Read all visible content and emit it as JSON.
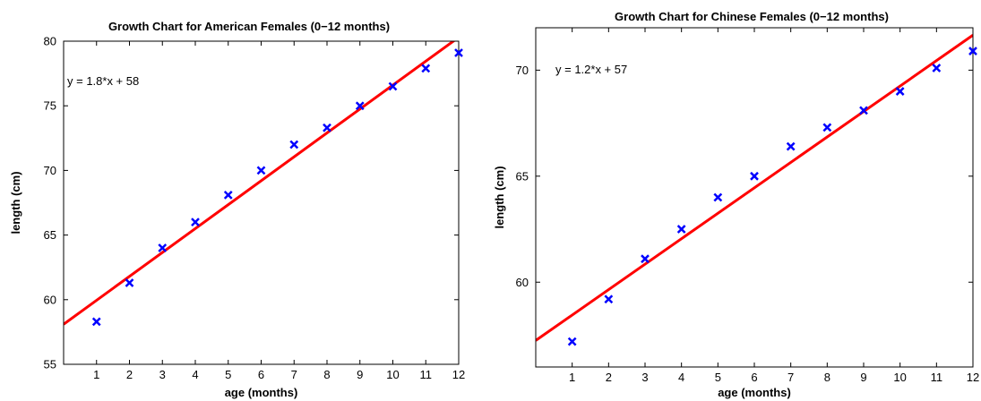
{
  "chart_data": [
    {
      "type": "scatter",
      "title": "Growth Chart for American Females  (0−12 months)",
      "xlabel": "age (months)",
      "ylabel": "length (cm)",
      "xlim": [
        0,
        12
      ],
      "ylim": [
        55,
        80
      ],
      "xticks": [
        1,
        2,
        3,
        4,
        5,
        6,
        7,
        8,
        9,
        10,
        11,
        12
      ],
      "yticks": [
        55,
        60,
        65,
        70,
        75,
        80
      ],
      "grid": false,
      "annotation": "y = 1.8*x + 58",
      "marker_color": "#0000ff",
      "fit_line_color": "#ff0000",
      "fit_line": {
        "slope": 1.85,
        "intercept": 58.1
      },
      "series": [
        {
          "x": [
            1,
            2,
            3,
            4,
            5,
            6,
            7,
            8,
            9,
            10,
            11,
            12
          ],
          "y": [
            58.3,
            61.3,
            64.0,
            66.0,
            68.1,
            70.0,
            72.0,
            73.3,
            75.0,
            76.5,
            77.9,
            79.1
          ]
        }
      ]
    },
    {
      "type": "scatter",
      "title": "Growth Chart for Chinese Females (0−12 months)",
      "xlabel": "age (months)",
      "ylabel": "length (cm)",
      "xlim": [
        0,
        12
      ],
      "ylim": [
        56,
        72
      ],
      "xticks": [
        1,
        2,
        3,
        4,
        5,
        6,
        7,
        8,
        9,
        10,
        11,
        12
      ],
      "yticks": [
        60,
        65,
        70
      ],
      "grid": false,
      "annotation": "y = 1.2*x + 57",
      "marker_color": "#0000ff",
      "fit_line_color": "#ff0000",
      "fit_line": {
        "slope": 1.2,
        "intercept": 57.25
      },
      "series": [
        {
          "x": [
            1,
            2,
            3,
            4,
            5,
            6,
            7,
            8,
            9,
            10,
            11,
            12
          ],
          "y": [
            57.2,
            59.2,
            61.1,
            62.5,
            64.0,
            65.0,
            66.4,
            67.3,
            68.1,
            69.0,
            70.1,
            70.9
          ]
        }
      ]
    }
  ]
}
